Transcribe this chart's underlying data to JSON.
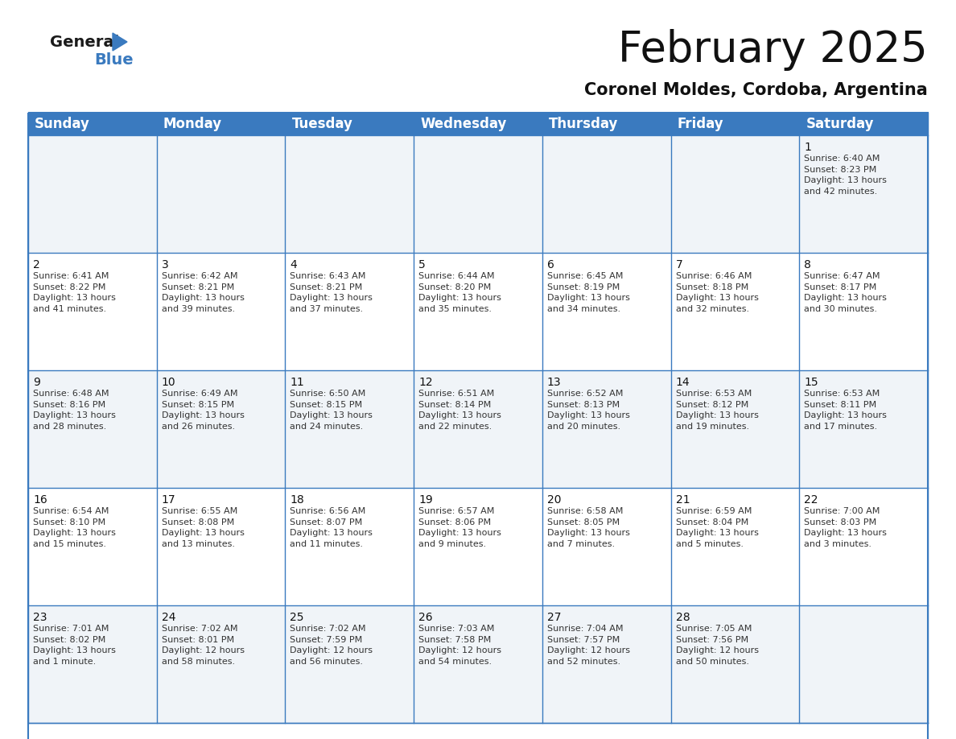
{
  "title": "February 2025",
  "subtitle": "Coronel Moldes, Cordoba, Argentina",
  "header_color": "#3a7abf",
  "header_text_color": "#ffffff",
  "day_headers": [
    "Sunday",
    "Monday",
    "Tuesday",
    "Wednesday",
    "Thursday",
    "Friday",
    "Saturday"
  ],
  "title_fontsize": 38,
  "subtitle_fontsize": 15,
  "header_fontsize": 12,
  "day_num_fontsize": 10,
  "info_fontsize": 8,
  "weeks": [
    [
      {
        "day": "",
        "info": ""
      },
      {
        "day": "",
        "info": ""
      },
      {
        "day": "",
        "info": ""
      },
      {
        "day": "",
        "info": ""
      },
      {
        "day": "",
        "info": ""
      },
      {
        "day": "",
        "info": ""
      },
      {
        "day": "1",
        "info": "Sunrise: 6:40 AM\nSunset: 8:23 PM\nDaylight: 13 hours\nand 42 minutes."
      }
    ],
    [
      {
        "day": "2",
        "info": "Sunrise: 6:41 AM\nSunset: 8:22 PM\nDaylight: 13 hours\nand 41 minutes."
      },
      {
        "day": "3",
        "info": "Sunrise: 6:42 AM\nSunset: 8:21 PM\nDaylight: 13 hours\nand 39 minutes."
      },
      {
        "day": "4",
        "info": "Sunrise: 6:43 AM\nSunset: 8:21 PM\nDaylight: 13 hours\nand 37 minutes."
      },
      {
        "day": "5",
        "info": "Sunrise: 6:44 AM\nSunset: 8:20 PM\nDaylight: 13 hours\nand 35 minutes."
      },
      {
        "day": "6",
        "info": "Sunrise: 6:45 AM\nSunset: 8:19 PM\nDaylight: 13 hours\nand 34 minutes."
      },
      {
        "day": "7",
        "info": "Sunrise: 6:46 AM\nSunset: 8:18 PM\nDaylight: 13 hours\nand 32 minutes."
      },
      {
        "day": "8",
        "info": "Sunrise: 6:47 AM\nSunset: 8:17 PM\nDaylight: 13 hours\nand 30 minutes."
      }
    ],
    [
      {
        "day": "9",
        "info": "Sunrise: 6:48 AM\nSunset: 8:16 PM\nDaylight: 13 hours\nand 28 minutes."
      },
      {
        "day": "10",
        "info": "Sunrise: 6:49 AM\nSunset: 8:15 PM\nDaylight: 13 hours\nand 26 minutes."
      },
      {
        "day": "11",
        "info": "Sunrise: 6:50 AM\nSunset: 8:15 PM\nDaylight: 13 hours\nand 24 minutes."
      },
      {
        "day": "12",
        "info": "Sunrise: 6:51 AM\nSunset: 8:14 PM\nDaylight: 13 hours\nand 22 minutes."
      },
      {
        "day": "13",
        "info": "Sunrise: 6:52 AM\nSunset: 8:13 PM\nDaylight: 13 hours\nand 20 minutes."
      },
      {
        "day": "14",
        "info": "Sunrise: 6:53 AM\nSunset: 8:12 PM\nDaylight: 13 hours\nand 19 minutes."
      },
      {
        "day": "15",
        "info": "Sunrise: 6:53 AM\nSunset: 8:11 PM\nDaylight: 13 hours\nand 17 minutes."
      }
    ],
    [
      {
        "day": "16",
        "info": "Sunrise: 6:54 AM\nSunset: 8:10 PM\nDaylight: 13 hours\nand 15 minutes."
      },
      {
        "day": "17",
        "info": "Sunrise: 6:55 AM\nSunset: 8:08 PM\nDaylight: 13 hours\nand 13 minutes."
      },
      {
        "day": "18",
        "info": "Sunrise: 6:56 AM\nSunset: 8:07 PM\nDaylight: 13 hours\nand 11 minutes."
      },
      {
        "day": "19",
        "info": "Sunrise: 6:57 AM\nSunset: 8:06 PM\nDaylight: 13 hours\nand 9 minutes."
      },
      {
        "day": "20",
        "info": "Sunrise: 6:58 AM\nSunset: 8:05 PM\nDaylight: 13 hours\nand 7 minutes."
      },
      {
        "day": "21",
        "info": "Sunrise: 6:59 AM\nSunset: 8:04 PM\nDaylight: 13 hours\nand 5 minutes."
      },
      {
        "day": "22",
        "info": "Sunrise: 7:00 AM\nSunset: 8:03 PM\nDaylight: 13 hours\nand 3 minutes."
      }
    ],
    [
      {
        "day": "23",
        "info": "Sunrise: 7:01 AM\nSunset: 8:02 PM\nDaylight: 13 hours\nand 1 minute."
      },
      {
        "day": "24",
        "info": "Sunrise: 7:02 AM\nSunset: 8:01 PM\nDaylight: 12 hours\nand 58 minutes."
      },
      {
        "day": "25",
        "info": "Sunrise: 7:02 AM\nSunset: 7:59 PM\nDaylight: 12 hours\nand 56 minutes."
      },
      {
        "day": "26",
        "info": "Sunrise: 7:03 AM\nSunset: 7:58 PM\nDaylight: 12 hours\nand 54 minutes."
      },
      {
        "day": "27",
        "info": "Sunrise: 7:04 AM\nSunset: 7:57 PM\nDaylight: 12 hours\nand 52 minutes."
      },
      {
        "day": "28",
        "info": "Sunrise: 7:05 AM\nSunset: 7:56 PM\nDaylight: 12 hours\nand 50 minutes."
      },
      {
        "day": "",
        "info": ""
      }
    ]
  ],
  "logo_general_color": "#1a1a1a",
  "logo_blue_color": "#3a7abf",
  "border_color": "#3a7abf",
  "cell_bg_white": "#ffffff",
  "cell_bg_gray": "#f0f4f8"
}
